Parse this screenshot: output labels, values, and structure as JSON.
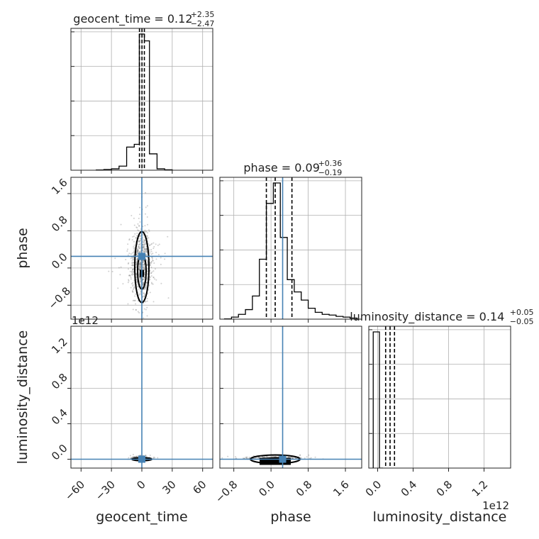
{
  "chart_data": {
    "type": "corner",
    "parameters": [
      "geocent_time",
      "phase",
      "luminosity_distance"
    ],
    "truths": {
      "geocent_time": 0.0,
      "phase": 0.25,
      "luminosity_distance": 0.0
    },
    "titles": [
      {
        "param": "geocent_time",
        "text": "geocent_time = 0.12",
        "plus": "+2.35",
        "minus": "−2.47"
      },
      {
        "param": "phase",
        "text": "phase = 0.09",
        "plus": "+0.36",
        "minus": "−0.19"
      },
      {
        "param": "luminosity_distance",
        "text": "luminosity_distance = 0.14",
        "plus": "+0.05",
        "minus": "−0.05"
      }
    ],
    "axis_ranges": {
      "geocent_time": [
        -70,
        70
      ],
      "phase": [
        -1.1,
        1.95
      ],
      "luminosity_distance": [
        -0.1,
        1.5
      ]
    },
    "axis_ticks": {
      "geocent_time": [
        "−60",
        "−30",
        "0",
        "30",
        "60"
      ],
      "phase": [
        "−0.8",
        "0.0",
        "0.8",
        "1.6"
      ],
      "luminosity_distance": [
        "0.0",
        "0.4",
        "0.8",
        "1.2"
      ]
    },
    "tick_values": {
      "geocent_time": [
        -60,
        -30,
        0,
        30,
        60
      ],
      "phase": [
        -0.8,
        0.0,
        0.8,
        1.6
      ],
      "luminosity_distance": [
        0.0,
        0.4,
        0.8,
        1.2
      ]
    },
    "offset_text": {
      "luminosity_distance_y": "1e12",
      "luminosity_distance_x": "1e12"
    },
    "histograms": {
      "geocent_time": {
        "edges": [
          -45,
          -37.5,
          -30,
          -22.5,
          -15,
          -7.5,
          -2.5,
          2.5,
          7.5,
          15,
          22.5,
          30
        ],
        "counts": [
          0.2,
          0.5,
          1.0,
          3.0,
          17.0,
          19.0,
          100.0,
          95.0,
          12.0,
          1.0,
          0.3
        ]
      },
      "phase": {
        "edges": [
          -1.0,
          -0.85,
          -0.7,
          -0.55,
          -0.4,
          -0.25,
          -0.1,
          0.05,
          0.2,
          0.35,
          0.5,
          0.65,
          0.8,
          0.95,
          1.1,
          1.25,
          1.4,
          1.55,
          1.7,
          1.85
        ],
        "counts": [
          0.2,
          1.5,
          3.5,
          7.0,
          17.0,
          44.0,
          85.0,
          100.0,
          60.0,
          29.0,
          20.0,
          14.0,
          8.0,
          5.0,
          3.5,
          3.0,
          2.0,
          1.5,
          0.8
        ]
      },
      "luminosity_distance": {
        "edges": [
          -0.05,
          0.0,
          0.02,
          0.06
        ],
        "counts": [
          100.0,
          100.0,
          0.0
        ]
      }
    },
    "quantile_lines": {
      "geocent_time": [
        -2.35,
        0.12,
        2.47
      ],
      "phase": [
        -0.1,
        0.09,
        0.45
      ],
      "luminosity_distance": [
        0.09,
        0.14,
        0.19
      ]
    }
  }
}
